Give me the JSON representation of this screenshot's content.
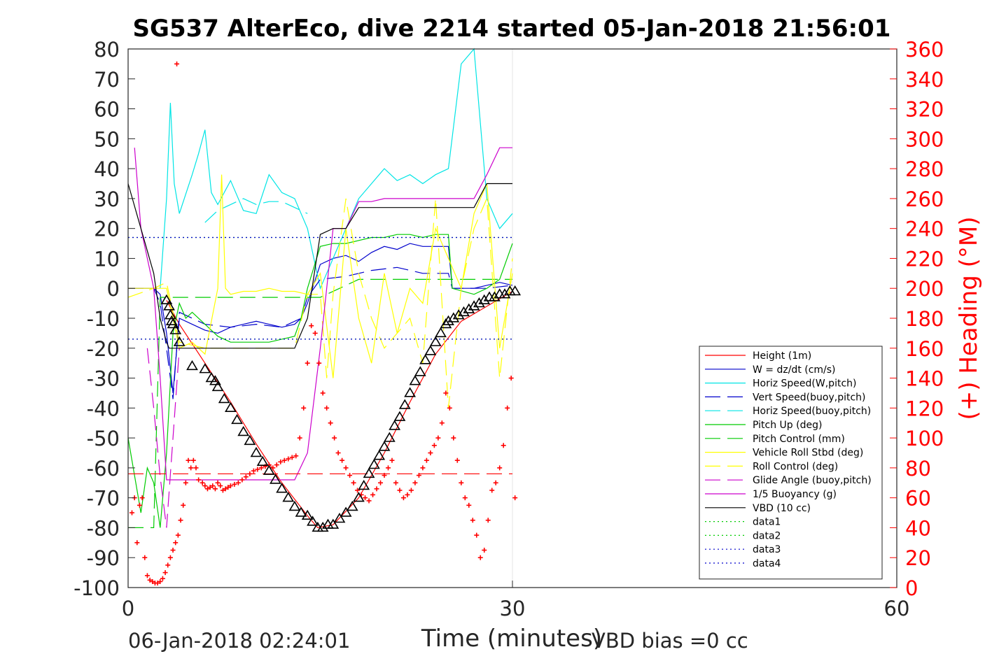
{
  "chart_data": {
    "type": "line",
    "title": "SG537 AlterEco, dive 2214 started 05-Jan-2018 21:56:01",
    "xlabel": "Time (minutes)",
    "ylabel": "",
    "y2label": "(+) Heading (°M)",
    "xlim": [
      0,
      60
    ],
    "ylim": [
      -100,
      80
    ],
    "y2lim": [
      0,
      360
    ],
    "xticks": [
      "0",
      "30",
      "60"
    ],
    "yticks": [
      "80",
      "70",
      "60",
      "50",
      "40",
      "30",
      "20",
      "10",
      "0",
      "-10",
      "-20",
      "-30",
      "-40",
      "-50",
      "-60",
      "-70",
      "-80",
      "-90",
      "-100"
    ],
    "y2ticks": [
      "360",
      "340",
      "320",
      "300",
      "280",
      "260",
      "240",
      "220",
      "200",
      "180",
      "160",
      "140",
      "120",
      "100",
      "80",
      "60",
      "40",
      "20",
      "0"
    ],
    "grid": "x-only",
    "legend_position": "lower-right",
    "legend": [
      {
        "label": "Height (1m)",
        "color": "#ff0000",
        "dash": "solid"
      },
      {
        "label": "W = dz/dt (cm/s)",
        "color": "#0000cc",
        "dash": "solid"
      },
      {
        "label": "Horiz Speed(W,pitch)",
        "color": "#00e5e5",
        "dash": "solid"
      },
      {
        "label": "Vert Speed(buoy,pitch)",
        "color": "#0000cc",
        "dash": "dashed"
      },
      {
        "label": "Horiz Speed(buoy,pitch)",
        "color": "#00e5e5",
        "dash": "dashed"
      },
      {
        "label": "Pitch Up (deg)",
        "color": "#00cc00",
        "dash": "solid"
      },
      {
        "label": "Pitch Control (mm)",
        "color": "#00cc00",
        "dash": "dashed"
      },
      {
        "label": "Vehicle Roll Stbd (deg)",
        "color": "#ffff00",
        "dash": "solid"
      },
      {
        "label": "Roll Control (deg)",
        "color": "#ffff00",
        "dash": "dashed"
      },
      {
        "label": "Glide Angle (buoy,pitch)",
        "color": "#cc00cc",
        "dash": "dashed"
      },
      {
        "label": "1/5 Buoyancy (g)",
        "color": "#cc00cc",
        "dash": "solid"
      },
      {
        "label": "VBD (10 cc)",
        "color": "#000000",
        "dash": "solid"
      },
      {
        "label": "data1",
        "color": "#00cc00",
        "dash": "dotted"
      },
      {
        "label": "data2",
        "color": "#00cc00",
        "dash": "dotted"
      },
      {
        "label": "data3",
        "color": "#0000cc",
        "dash": "dotted"
      },
      {
        "label": "data4",
        "color": "#0000cc",
        "dash": "dotted"
      }
    ],
    "series": [
      {
        "name": "Height (1m)",
        "color": "#ff0000",
        "dash": "solid",
        "x": [
          3.0,
          4.0,
          6.0,
          8.0,
          10.0,
          12.0,
          14.0,
          14.8,
          16.0,
          18.0,
          20.0,
          22.0,
          24.0,
          26.0,
          28.0,
          30.0
        ],
        "y": [
          -4,
          -12,
          -25,
          -38,
          -52,
          -65,
          -76,
          -80,
          -79,
          -70,
          -55,
          -38,
          -22,
          -11,
          -6,
          -1
        ]
      },
      {
        "name": "W = dz/dt (cm/s)",
        "color": "#0000cc",
        "dash": "solid",
        "x": [
          0,
          1,
          2,
          2.5,
          3,
          3.5,
          4,
          5,
          6,
          7,
          8,
          9,
          10,
          11,
          12,
          13,
          13.5,
          14,
          15,
          16,
          17,
          18,
          19,
          20,
          21,
          22,
          23,
          24,
          25,
          25.3,
          27,
          29,
          30
        ],
        "y": [
          0,
          0,
          0,
          -2,
          -15,
          -35,
          -10,
          -12,
          -14,
          -15,
          -13,
          -12,
          -11,
          -12,
          -13,
          -12,
          -10,
          -5,
          8,
          10,
          11,
          9,
          12,
          14,
          13,
          15,
          14,
          14,
          14,
          0,
          0,
          2,
          1
        ]
      },
      {
        "name": "Horiz Speed(W,pitch)",
        "color": "#00e5e5",
        "dash": "solid",
        "x": [
          2.5,
          3,
          3.3,
          3.6,
          4,
          5,
          5.5,
          6,
          6.5,
          7,
          8,
          9,
          10,
          11,
          12,
          13,
          14,
          15,
          16,
          17,
          18,
          19,
          20,
          21,
          22,
          23,
          24,
          25,
          26,
          27,
          28,
          29,
          30
        ],
        "y": [
          0,
          30,
          62,
          35,
          25,
          38,
          45,
          53,
          32,
          28,
          36,
          26,
          25,
          38,
          32,
          30,
          20,
          0,
          10,
          20,
          30,
          35,
          40,
          36,
          38,
          35,
          38,
          40,
          75,
          80,
          30,
          20,
          25
        ]
      },
      {
        "name": "Vert Speed(buoy,pitch)",
        "color": "#0000cc",
        "dash": "dashed",
        "x": [
          0,
          2,
          2.5,
          3,
          3.5,
          4,
          6,
          8,
          10,
          12,
          13.5,
          14,
          15,
          17,
          19,
          21,
          23,
          25,
          25.3,
          28,
          30
        ],
        "y": [
          0,
          0,
          -5,
          -20,
          -37,
          -8,
          -12,
          -13,
          -12,
          -13,
          -10,
          -3,
          3,
          4,
          6,
          7,
          5,
          5,
          0,
          0,
          1
        ]
      },
      {
        "name": "Horiz Speed(buoy,pitch)",
        "color": "#00e5e5",
        "dash": "dashed",
        "x": [
          6,
          7,
          8,
          9,
          10,
          11,
          12,
          13,
          14
        ],
        "y": [
          22,
          26,
          28,
          30,
          28,
          29,
          29,
          27,
          25
        ]
      },
      {
        "name": "Pitch Up (deg)",
        "color": "#00cc00",
        "dash": "solid",
        "x": [
          0,
          1,
          1.5,
          2,
          2.5,
          3,
          3.5,
          4,
          4.5,
          5,
          6,
          7,
          8,
          9,
          10,
          11,
          12,
          13,
          13.5,
          14,
          15,
          16,
          17,
          18,
          19,
          20,
          21,
          22,
          23,
          24,
          25,
          25.3,
          27,
          28,
          29,
          30
        ],
        "y": [
          -50,
          -75,
          -60,
          -65,
          -80,
          -55,
          -15,
          -5,
          -10,
          -8,
          -12,
          -16,
          -18,
          -18,
          -18,
          -18,
          -17,
          -16,
          -10,
          0,
          14,
          15,
          15,
          16,
          17,
          17,
          18,
          18,
          17,
          18,
          18,
          0,
          -2,
          0,
          3,
          15
        ]
      },
      {
        "name": "Pitch Control (mm)",
        "color": "#00cc00",
        "dash": "dashed",
        "x": [
          0,
          2,
          2.5,
          3,
          4,
          13,
          14,
          15,
          18,
          25,
          25.3,
          30
        ],
        "y": [
          -80,
          -80,
          -3,
          -3,
          -3,
          -3,
          -3,
          -3,
          3,
          3,
          3,
          3
        ]
      },
      {
        "name": "Vehicle Roll Stbd (deg)",
        "color": "#ffff00",
        "dash": "solid",
        "x": [
          0,
          2,
          3,
          4,
          5,
          6,
          7,
          7.3,
          7.6,
          8,
          9,
          10,
          11,
          12,
          13,
          14,
          15,
          16,
          17,
          18,
          19,
          20,
          21,
          22,
          23,
          24,
          25,
          26,
          27,
          28,
          29,
          30
        ],
        "y": [
          0,
          0,
          0,
          -20,
          -18,
          -22,
          0,
          38,
          0,
          -2,
          -1,
          -1,
          0,
          -1,
          -1,
          -2,
          5,
          -30,
          20,
          -10,
          -25,
          5,
          -15,
          0,
          -5,
          20,
          10,
          0,
          25,
          35,
          -20,
          5
        ]
      },
      {
        "name": "Roll Control (deg)",
        "color": "#ffff00",
        "dash": "dashed",
        "x": [
          0,
          2,
          3,
          4,
          6,
          8,
          10,
          12,
          13,
          14,
          15,
          15.5,
          16,
          17,
          18,
          19,
          20,
          21,
          22,
          23,
          24,
          25,
          26,
          27,
          28,
          29,
          30
        ],
        "y": [
          -3,
          0,
          2,
          -18,
          -20,
          -20,
          -20,
          -20,
          -20,
          -2,
          -2,
          -30,
          -2,
          30,
          5,
          -10,
          -20,
          -15,
          -10,
          -25,
          30,
          -40,
          0,
          20,
          30,
          -30,
          10
        ]
      },
      {
        "name": "Glide Angle (buoy,pitch)",
        "color": "#cc00cc",
        "dash": "dashed",
        "x": [
          1.5,
          2,
          2.5,
          3,
          3.5,
          4
        ],
        "y": [
          -20,
          -40,
          -63,
          -80,
          -50,
          -20
        ]
      },
      {
        "name": "1/5 Buoyancy (g)",
        "color": "#cc00cc",
        "dash": "solid",
        "x": [
          0.5,
          1,
          2,
          2.5,
          3,
          3.5,
          4,
          5,
          8,
          10,
          12,
          13,
          14,
          15,
          16,
          17,
          18,
          19,
          20,
          22,
          24,
          25,
          26,
          27,
          28,
          29,
          30
        ],
        "y": [
          47,
          20,
          0,
          -30,
          -64,
          -64,
          -64,
          -64,
          -64,
          -64,
          -64,
          -64,
          -55,
          -20,
          20,
          20,
          29,
          29,
          30,
          30,
          30,
          30,
          30,
          30,
          38,
          47,
          47
        ]
      },
      {
        "name": "VBD (10 cc)",
        "color": "#000000",
        "dash": "solid",
        "x": [
          0,
          1,
          2,
          2.5,
          3,
          3.2,
          5,
          8,
          10,
          12,
          13,
          14,
          15,
          16,
          17,
          18,
          19,
          20,
          22,
          24,
          25,
          26,
          27,
          28,
          29,
          30
        ],
        "y": [
          35,
          20,
          5,
          -10,
          -18,
          -20,
          -20,
          -20,
          -20,
          -20,
          -20,
          -10,
          18,
          20,
          20,
          27,
          27,
          27,
          27,
          27,
          27,
          27,
          27,
          35,
          35,
          35
        ]
      },
      {
        "name": "data1",
        "color": "#00cc00",
        "dash": "dotted",
        "x": [
          0,
          30
        ],
        "y": [
          17,
          17
        ]
      },
      {
        "name": "data2",
        "color": "#00cc00",
        "dash": "dotted",
        "x": [
          0,
          30
        ],
        "y": [
          -17,
          -17
        ]
      },
      {
        "name": "data3",
        "color": "#0000cc",
        "dash": "dotted",
        "x": [
          0,
          30
        ],
        "y": [
          17,
          17
        ]
      },
      {
        "name": "data4",
        "color": "#0000cc",
        "dash": "dotted",
        "x": [
          0,
          30
        ],
        "y": [
          -17,
          -17
        ]
      }
    ],
    "reference_lines": [
      {
        "y": -62,
        "color": "#ff0000",
        "dash": "dashed",
        "x_range": [
          0,
          30
        ]
      }
    ],
    "markers": {
      "color": "#000000",
      "symbol": "triangle",
      "x": [
        3.0,
        3.2,
        3.3,
        3.4,
        3.5,
        3.7,
        4.0,
        5.0,
        6.0,
        6.5,
        6.8,
        7.0,
        7.5,
        8.0,
        8.5,
        9.0,
        9.5,
        10.0,
        10.5,
        11.0,
        11.5,
        12.0,
        12.5,
        13.0,
        13.5,
        14.0,
        14.4,
        14.8,
        15.2,
        15.6,
        16.0,
        16.5,
        17.0,
        17.5,
        18.0,
        18.4,
        18.8,
        19.2,
        19.6,
        20.0,
        20.4,
        20.8,
        21.2,
        21.6,
        22.0,
        22.4,
        22.8,
        23.2,
        23.6,
        24.0,
        24.4,
        24.8,
        25.0,
        25.4,
        25.8,
        26.2,
        26.6,
        27.0,
        27.4,
        27.8,
        28.2,
        28.6,
        29.0,
        29.4,
        29.8,
        30.2
      ],
      "y": [
        -4,
        -6,
        -9,
        -11,
        -12,
        -14,
        -18,
        -26,
        -27,
        -30,
        -31,
        -33,
        -37,
        -40,
        -44,
        -48,
        -51,
        -55,
        -58,
        -61,
        -64,
        -67,
        -70,
        -73,
        -75,
        -76,
        -78,
        -80,
        -80,
        -79,
        -79,
        -77,
        -75,
        -73,
        -70,
        -66,
        -62,
        -59,
        -56,
        -53,
        -50,
        -46,
        -43,
        -39,
        -35,
        -31,
        -28,
        -24,
        -21,
        -18,
        -15,
        -12,
        -11,
        -10,
        -9,
        -8,
        -7,
        -6,
        -5,
        -4,
        -3,
        -3,
        -2,
        -2,
        -1,
        -1
      ]
    },
    "heading": {
      "name": "(+) Heading (°M)",
      "color": "#ff0000",
      "symbol": "plus",
      "axis": "right",
      "x": [
        0.3,
        0.5,
        0.7,
        0.9,
        1.1,
        1.3,
        1.5,
        1.7,
        1.9,
        2.1,
        2.3,
        2.5,
        2.7,
        2.9,
        3.1,
        3.3,
        3.5,
        3.7,
        3.9,
        4.1,
        4.3,
        4.5,
        4.7,
        4.9,
        5.1,
        5.3,
        5.5,
        3.8,
        5.8,
        6.0,
        6.2,
        6.4,
        6.6,
        6.8,
        7.0,
        7.2,
        7.4,
        7.6,
        7.8,
        8.0,
        8.3,
        8.6,
        8.9,
        9.2,
        9.5,
        9.8,
        10.1,
        10.4,
        10.7,
        11.0,
        11.3,
        11.6,
        11.9,
        12.2,
        12.5,
        12.8,
        13.1,
        13.4,
        13.7,
        14.0,
        14.3,
        14.6,
        14.9,
        15.2,
        15.5,
        15.8,
        16.1,
        16.4,
        16.7,
        17.0,
        17.3,
        17.6,
        17.9,
        18.2,
        18.5,
        18.8,
        19.1,
        19.4,
        19.7,
        20.0,
        20.3,
        20.6,
        20.9,
        21.2,
        21.5,
        21.8,
        22.1,
        22.4,
        22.7,
        23.0,
        23.3,
        23.6,
        23.9,
        24.2,
        24.5,
        24.8,
        25.1,
        25.4,
        25.7,
        26.0,
        26.3,
        26.6,
        26.9,
        27.2,
        27.5,
        27.8,
        28.1,
        28.4,
        28.7,
        29.0,
        29.3,
        29.6,
        29.9,
        30.2
      ],
      "y": [
        50,
        60,
        30,
        55,
        60,
        20,
        8,
        5,
        4,
        3,
        3,
        4,
        6,
        10,
        15,
        20,
        25,
        30,
        35,
        45,
        55,
        70,
        85,
        80,
        85,
        80,
        72,
        350,
        70,
        68,
        66,
        67,
        68,
        66,
        70,
        68,
        65,
        66,
        67,
        68,
        69,
        70,
        72,
        74,
        76,
        78,
        79,
        80,
        81,
        82,
        80,
        82,
        84,
        85,
        86,
        87,
        88,
        100,
        120,
        150,
        175,
        170,
        150,
        130,
        120,
        110,
        100,
        90,
        85,
        80,
        75,
        70,
        65,
        62,
        60,
        58,
        62,
        66,
        70,
        75,
        80,
        85,
        70,
        65,
        60,
        62,
        65,
        70,
        75,
        80,
        85,
        90,
        95,
        100,
        110,
        130,
        120,
        100,
        85,
        70,
        60,
        55,
        45,
        35,
        20,
        25,
        45,
        65,
        70,
        80,
        95,
        120,
        140,
        60
      ]
    }
  },
  "footer": {
    "timestamp": "06-Jan-2018 02:24:01",
    "vbd_bias": "VBD bias =0 cc"
  }
}
